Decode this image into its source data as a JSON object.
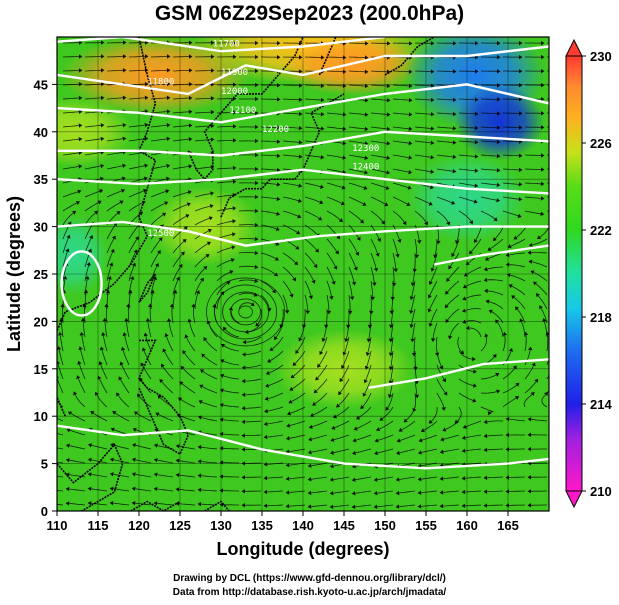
{
  "title": "GSM 06Z29Sep2023 (200.0hPa)",
  "xlabel": "Longitude (degrees)",
  "ylabel": "Latitude  (degrees)",
  "x_ticks": [
    "110",
    "115",
    "120",
    "125",
    "130",
    "135",
    "140",
    "145",
    "150",
    "155",
    "160",
    "165"
  ],
  "y_ticks": [
    "0",
    "5",
    "10",
    "15",
    "20",
    "25",
    "30",
    "35",
    "40",
    "45"
  ],
  "colorbar_ticks": [
    "210",
    "214",
    "218",
    "222",
    "226",
    "230"
  ],
  "credits": {
    "line1": "Drawing by DCL (https://www.gfd-dennou.org/library/dcl/)",
    "line2": "Data from http://database.rish.kyoto-u.ac.jp/arch/jmadata/"
  },
  "contour_labels": [
    "11700",
    "11800",
    "11900",
    "12000",
    "12100",
    "12200",
    "12300",
    "12400",
    "12500"
  ],
  "colors": {
    "field_base": "#3fc81f",
    "warm": "#ff9a22",
    "cool": "#1e7cf0",
    "contour": "#ffffff",
    "streamline": "#000000"
  },
  "chart_data": {
    "type": "heatmap",
    "variable": "temperature (K) with geopotential height contours and wind streamlines",
    "xlim": [
      110,
      170
    ],
    "ylim": [
      0,
      50
    ],
    "colorbar_range": [
      210,
      230
    ],
    "colorbar_ticks": [
      210,
      214,
      218,
      222,
      226,
      230
    ],
    "features": [
      {
        "label": "warm region",
        "lon": 120,
        "lat": 46,
        "value": 227
      },
      {
        "label": "warm region",
        "lon": 140,
        "lat": 48,
        "value": 228
      },
      {
        "label": "cold region",
        "lon": 163,
        "lat": 42,
        "value": 216
      },
      {
        "label": "anticyclone center",
        "lon": 133,
        "lat": 21
      }
    ]
  }
}
